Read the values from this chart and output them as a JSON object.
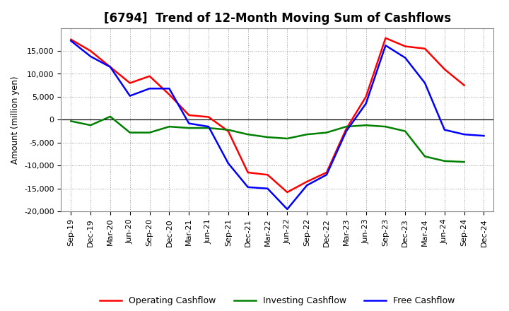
{
  "title": "[6794]  Trend of 12-Month Moving Sum of Cashflows",
  "ylabel": "Amount (million yen)",
  "xlabels": [
    "Sep-19",
    "Dec-19",
    "Mar-20",
    "Jun-20",
    "Sep-20",
    "Dec-20",
    "Mar-21",
    "Jun-21",
    "Sep-21",
    "Dec-21",
    "Mar-22",
    "Jun-22",
    "Sep-22",
    "Dec-22",
    "Mar-23",
    "Jun-23",
    "Sep-23",
    "Dec-23",
    "Mar-24",
    "Jun-24",
    "Sep-24",
    "Dec-24"
  ],
  "operating": [
    17500,
    15000,
    11500,
    8000,
    9500,
    5500,
    1000,
    600,
    -2500,
    -11500,
    -12000,
    -15800,
    -13500,
    -11500,
    -2000,
    5000,
    17800,
    16000,
    15500,
    11000,
    7500,
    null
  ],
  "investing": [
    -300,
    -1200,
    700,
    -2800,
    -2800,
    -1500,
    -1800,
    -1800,
    -2200,
    -3200,
    -3800,
    -4100,
    -3200,
    -2800,
    -1500,
    -1200,
    -1500,
    -2500,
    -8000,
    -9000,
    -9200,
    null
  ],
  "free": [
    17200,
    13800,
    11500,
    5200,
    6800,
    6800,
    -800,
    -1500,
    -9500,
    -14700,
    -15000,
    -19500,
    -14300,
    -12000,
    -2500,
    3500,
    16200,
    13500,
    8000,
    -2200,
    -3200,
    -3500
  ],
  "operating_color": "#FF0000",
  "investing_color": "#008000",
  "free_color": "#0000FF",
  "ylim": [
    -20000,
    20000
  ],
  "yticks": [
    -20000,
    -15000,
    -10000,
    -5000,
    0,
    5000,
    10000,
    15000
  ],
  "background_color": "#FFFFFF",
  "grid_color": "#999999",
  "linewidth": 1.8,
  "title_fontsize": 12,
  "axis_fontsize": 8,
  "ylabel_fontsize": 8.5
}
